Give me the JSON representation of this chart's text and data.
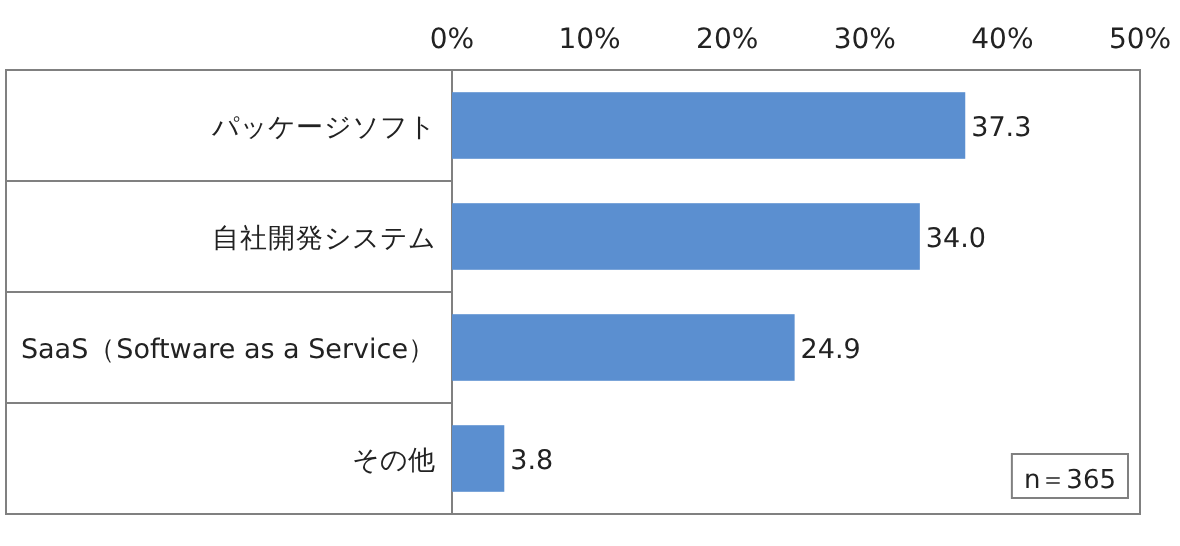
{
  "chart_data": {
    "type": "bar",
    "orientation": "horizontal",
    "categories": [
      "パッケージソフト",
      "自社開発システム",
      "SaaS（Software as a Service）",
      "その他"
    ],
    "values": [
      37.3,
      34.0,
      24.9,
      3.8
    ],
    "value_labels": [
      "37.3",
      "34.0",
      "24.9",
      "3.8"
    ],
    "color": "#5b8fd0",
    "xlim": [
      0,
      50
    ],
    "xticks": [
      {
        "value": 0,
        "label": "0%"
      },
      {
        "value": 10,
        "label": "10%"
      },
      {
        "value": 20,
        "label": "20%"
      },
      {
        "value": 30,
        "label": "30%"
      },
      {
        "value": 40,
        "label": "40%"
      },
      {
        "value": 50,
        "label": "50%"
      }
    ],
    "annotations": [
      "n＝365"
    ]
  }
}
